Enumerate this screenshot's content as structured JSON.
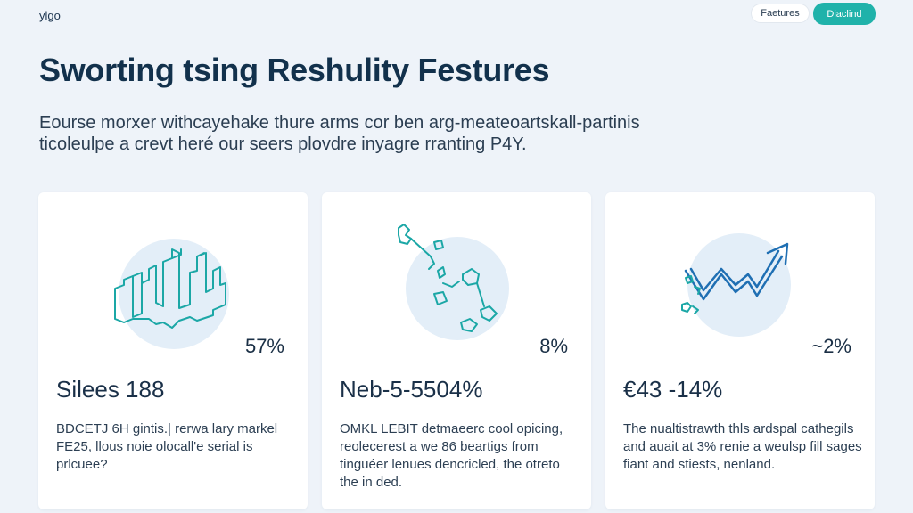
{
  "header": {
    "brand": "ylgo",
    "nav_features": "Faetures",
    "nav_cta": "Diaclind"
  },
  "hero": {
    "title": "Sworting tsing Reshulity Festures",
    "intro": "Eourse morxer withcayehake thure arms cor ben arg-meateoartskall-partinis ticoleulpe a crevt heré our seers plovdre inyagre rranting P4Y."
  },
  "cards": [
    {
      "percent": "57%",
      "title": "Silees 188",
      "description": "BDCETJ 6H gintis.| rerwa lary markel FE25, llous noie olocall'e serial is prlcuee?",
      "icon": "bar-chart-icon"
    },
    {
      "percent": "8%",
      "title": "Neb-5-5504%",
      "description": "OMKL LEBIT detmaeerc cool opicing, reolecerest a we 86 beartigs from tinguéer lenues dencricled, the otreto the in ded.",
      "icon": "network-nodes-icon"
    },
    {
      "percent": "~2%",
      "title": "€43 -14%",
      "description": "The nualtistrawth thls ardspal cathegils and auait at 3% renie a weulsp fill sages fiant and stiests, nenland.",
      "icon": "trend-arrow-icon"
    }
  ],
  "colors": {
    "background": "#eef3f9",
    "accent": "#20b2aa",
    "heading": "#12314c",
    "illustration_circle": "#e3eef8"
  }
}
